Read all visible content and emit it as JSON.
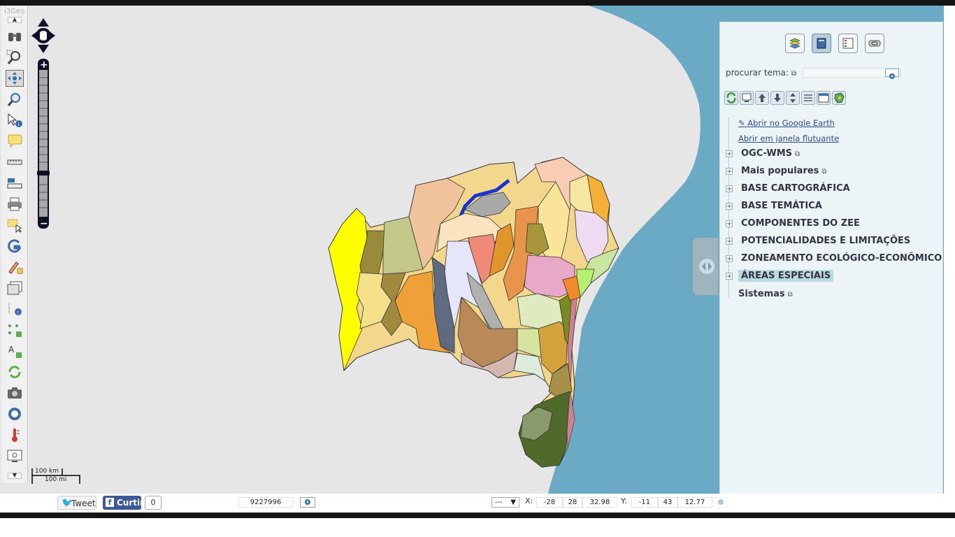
{
  "toolbar": {
    "title": "i3Geo",
    "tools": [
      "binoculars-icon",
      "zoom-box-icon",
      "pan-icon",
      "zoom-extent-icon",
      "identify-icon",
      "balloon-icon",
      "measure-distance-icon",
      "measure-area-icon",
      "print-icon",
      "select-icon",
      "google-icon",
      "edit-icon",
      "layers-icon",
      "info-point-icon",
      "insert-point-icon",
      "insert-text-icon",
      "refresh-icon",
      "camera-icon",
      "wikipedia-icon",
      "temperature-icon",
      "screen-zoom-icon"
    ],
    "active_tool": "pan-icon"
  },
  "scalebar": {
    "km": "100 km",
    "mi": "100 mi"
  },
  "panel": {
    "tabs": [
      "layers-tab",
      "catalog-tab",
      "legend-tab",
      "link-tab"
    ],
    "active_tab": "catalog-tab",
    "search_label": "procurar tema:",
    "search_value": "",
    "links": [
      "Abrir no Google Earth",
      "Abrir em janela flutuante"
    ],
    "groups": [
      {
        "label": "OGC-WMS",
        "external": true
      },
      {
        "label": "Mais populares",
        "external": true
      },
      {
        "label": "BASE CARTOGRÁFICA",
        "external": false
      },
      {
        "label": "BASE TEMÁTICA",
        "external": false
      },
      {
        "label": "COMPONENTES DO ZEE",
        "external": false
      },
      {
        "label": "POTENCIALIDADES E LIMITAÇÕES",
        "external": false
      },
      {
        "label": "ZONEAMENTO ECOLÓGICO-ECONÔMICO",
        "external": false
      },
      {
        "label": "ÁREAS ESPECIAIS",
        "external": false,
        "highlighted": true
      }
    ],
    "sistemas_label": "Sistemas"
  },
  "footer": {
    "tweet_label": "Tweet",
    "curtir_label": "Curtir",
    "curtir_count": "0",
    "scale_value": "9227996",
    "projection_select": "---",
    "x_label": "X:",
    "x_deg": "-28",
    "x_min": "28",
    "x_sec": "32.98",
    "y_label": "Y:",
    "y_deg": "-11",
    "y_min": "43",
    "y_sec": "12.77"
  },
  "colors": {
    "ocean": "#6aaac4",
    "land": "#e6e6e6",
    "panel_bg": "#ecf4f6",
    "highlight": "#b9dade",
    "twitter": "#1d9bf0",
    "facebook": "#3b5998"
  }
}
